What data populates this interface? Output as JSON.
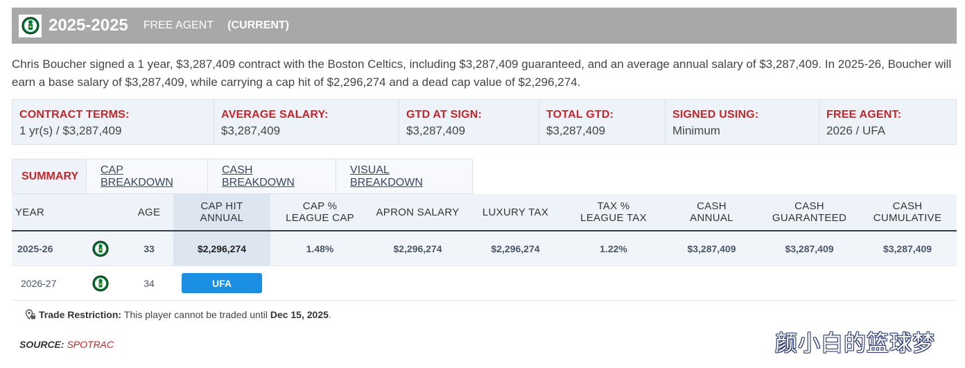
{
  "header": {
    "years": "2025-2025",
    "status": "FREE AGENT",
    "current": "(CURRENT)",
    "logo": "celtics-logo-icon"
  },
  "description": "Chris Boucher signed a 1 year, $3,287,409 contract with the Boston Celtics, including $3,287,409 guaranteed, and an average annual salary of $3,287,409. In 2025-26, Boucher will earn a base salary of $3,287,409, while carrying a cap hit of $2,296,274 and a dead cap value of $2,296,274.",
  "terms": [
    {
      "label": "CONTRACT TERMS:",
      "value": "1 yr(s) / $3,287,409"
    },
    {
      "label": "AVERAGE SALARY:",
      "value": "$3,287,409"
    },
    {
      "label": "GTD AT SIGN:",
      "value": "$3,287,409"
    },
    {
      "label": "TOTAL GTD:",
      "value": "$3,287,409"
    },
    {
      "label": "SIGNED USING:",
      "value": "Minimum"
    },
    {
      "label": "FREE AGENT:",
      "value": "2026 / UFA"
    }
  ],
  "tabs": [
    "SUMMARY",
    "CAP BREAKDOWN",
    "CASH BREAKDOWN",
    "VISUAL BREAKDOWN"
  ],
  "table": {
    "headers": {
      "year": "YEAR",
      "age": "AGE",
      "cap_hit_1": "CAP HIT",
      "cap_hit_2": "ANNUAL",
      "cap_pct_1": "CAP %",
      "cap_pct_2": "LEAGUE CAP",
      "apron": "APRON SALARY",
      "luxury": "LUXURY TAX",
      "tax_pct_1": "TAX %",
      "tax_pct_2": "LEAGUE TAX",
      "cash_annual_1": "CASH",
      "cash_annual_2": "ANNUAL",
      "cash_gtd_1": "CASH",
      "cash_gtd_2": "GUARANTEED",
      "cash_cum_1": "CASH",
      "cash_cum_2": "CUMULATIVE"
    },
    "rows": [
      {
        "year": "2025-26",
        "age": "33",
        "cap_hit": "$2,296,274",
        "cap_pct": "1.48%",
        "apron": "$2,296,274",
        "luxury": "$2,296,274",
        "tax_pct": "1.22%",
        "cash_annual": "$3,287,409",
        "cash_gtd": "$3,287,409",
        "cash_cum": "$3,287,409"
      },
      {
        "year": "2026-27",
        "age": "34",
        "status": "UFA"
      }
    ]
  },
  "trade": {
    "label": "Trade Restriction:",
    "text": "This player cannot be traded until",
    "date": "Dec 15, 2025",
    "end": "."
  },
  "source": {
    "label": "SOURCE:",
    "value": "SPOTRAC"
  },
  "watermark": "颜小白的篮球梦",
  "colors": {
    "accent_red": "#c0272d",
    "ufa_blue": "#1a8fe3",
    "header_gray": "#a8a8a8",
    "celtics_green": "#007a33"
  }
}
